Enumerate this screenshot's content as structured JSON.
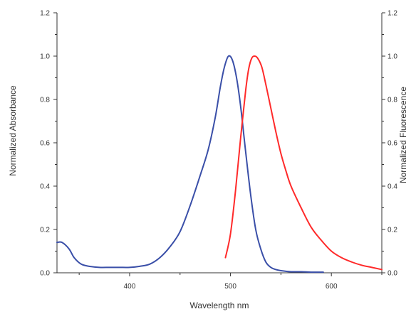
{
  "chart_data": {
    "type": "line",
    "title": "",
    "xlabel": "Wavelength nm",
    "ylabel_left": "Normalized Absorbance",
    "ylabel_right": "Normalized Fluorescence",
    "xlim": [
      328,
      650
    ],
    "ylim": [
      0,
      1.2
    ],
    "x_ticks": [
      400,
      500,
      600
    ],
    "x_tick_labels": [
      "400",
      "500",
      "600"
    ],
    "y_ticks": [
      0,
      0.2,
      0.4,
      0.6,
      0.8,
      1.0,
      1.2
    ],
    "y_tick_labels": [
      "0.0",
      "0.2",
      "0.4",
      "0.6",
      "0.8",
      "1.0",
      "1.2"
    ],
    "grid": false,
    "series": [
      {
        "color": "#3a4fa8",
        "axis": "left",
        "points": [
          [
            328,
            0.14
          ],
          [
            333,
            0.14
          ],
          [
            340,
            0.11
          ],
          [
            345,
            0.07
          ],
          [
            352,
            0.04
          ],
          [
            360,
            0.03
          ],
          [
            370,
            0.025
          ],
          [
            380,
            0.025
          ],
          [
            390,
            0.025
          ],
          [
            400,
            0.025
          ],
          [
            410,
            0.03
          ],
          [
            420,
            0.04
          ],
          [
            430,
            0.07
          ],
          [
            440,
            0.12
          ],
          [
            450,
            0.19
          ],
          [
            460,
            0.31
          ],
          [
            470,
            0.45
          ],
          [
            478,
            0.57
          ],
          [
            485,
            0.72
          ],
          [
            490,
            0.86
          ],
          [
            494,
            0.95
          ],
          [
            498,
            1.0
          ],
          [
            502,
            0.98
          ],
          [
            506,
            0.9
          ],
          [
            510,
            0.77
          ],
          [
            515,
            0.56
          ],
          [
            520,
            0.36
          ],
          [
            525,
            0.2
          ],
          [
            530,
            0.11
          ],
          [
            535,
            0.05
          ],
          [
            540,
            0.025
          ],
          [
            545,
            0.015
          ],
          [
            550,
            0.01
          ],
          [
            560,
            0.005
          ],
          [
            570,
            0.005
          ],
          [
            580,
            0.003
          ],
          [
            592,
            0.003
          ]
        ]
      },
      {
        "color": "#ff2a2a",
        "axis": "right",
        "points": [
          [
            495,
            0.07
          ],
          [
            500,
            0.18
          ],
          [
            505,
            0.38
          ],
          [
            510,
            0.62
          ],
          [
            515,
            0.84
          ],
          [
            518,
            0.94
          ],
          [
            521,
            0.99
          ],
          [
            524,
            1.0
          ],
          [
            527,
            0.99
          ],
          [
            531,
            0.95
          ],
          [
            535,
            0.87
          ],
          [
            540,
            0.76
          ],
          [
            545,
            0.65
          ],
          [
            550,
            0.55
          ],
          [
            555,
            0.47
          ],
          [
            560,
            0.4
          ],
          [
            570,
            0.3
          ],
          [
            580,
            0.21
          ],
          [
            590,
            0.15
          ],
          [
            600,
            0.1
          ],
          [
            610,
            0.07
          ],
          [
            620,
            0.05
          ],
          [
            630,
            0.035
          ],
          [
            640,
            0.025
          ],
          [
            650,
            0.015
          ]
        ]
      }
    ]
  }
}
